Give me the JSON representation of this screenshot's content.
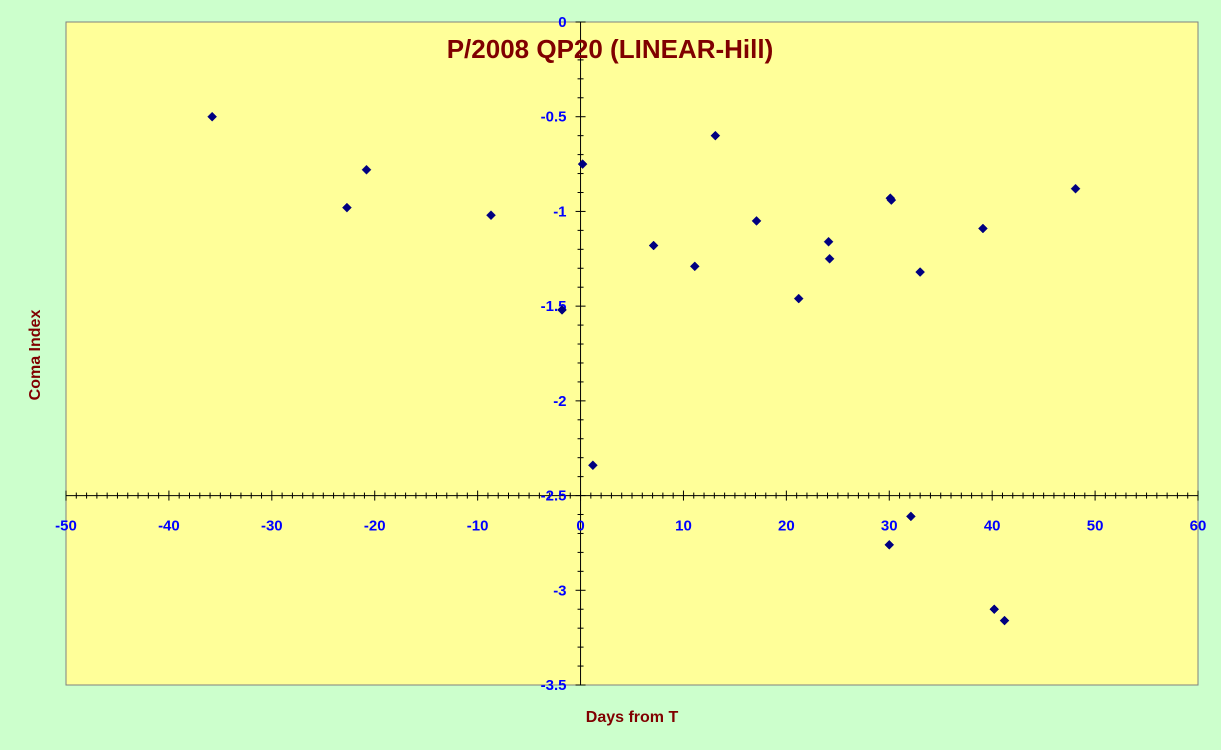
{
  "chart_data": {
    "type": "scatter",
    "title": "P/2008 QP20 (LINEAR-Hill)",
    "xlabel": "Days from T",
    "ylabel": "Coma Index",
    "xlim": [
      -50,
      60
    ],
    "ylim": [
      -3.5,
      0
    ],
    "x_ticks": [
      "-50",
      "-40",
      "-30",
      "-20",
      "-10",
      "0",
      "10",
      "20",
      "30",
      "40",
      "50",
      "60"
    ],
    "y_ticks": [
      "0",
      "-0.5",
      "-1",
      "-1.5",
      "-2",
      "-2.5",
      "-3",
      "-3.5"
    ],
    "grid": false,
    "legend": "none",
    "marker": "diamond",
    "colors": {
      "plot_area": "#ffff99",
      "outer_background": "#ccffcc",
      "marker": "#000080",
      "title": "#800000",
      "tick_labels": "#0000ff",
      "axis_lines": "#000000"
    },
    "points": [
      {
        "x": -35.8,
        "y": -0.5
      },
      {
        "x": -22.7,
        "y": -0.98
      },
      {
        "x": -20.8,
        "y": -0.78
      },
      {
        "x": -8.7,
        "y": -1.02
      },
      {
        "x": -1.8,
        "y": -1.52
      },
      {
        "x": 0.2,
        "y": -0.75
      },
      {
        "x": 1.2,
        "y": -2.34
      },
      {
        "x": 7.1,
        "y": -1.18
      },
      {
        "x": 11.1,
        "y": -1.29
      },
      {
        "x": 13.1,
        "y": -0.6
      },
      {
        "x": 17.1,
        "y": -1.05
      },
      {
        "x": 21.2,
        "y": -1.46
      },
      {
        "x": 24.1,
        "y": -1.16
      },
      {
        "x": 24.2,
        "y": -1.25
      },
      {
        "x": 30.1,
        "y": -0.93
      },
      {
        "x": 30.2,
        "y": -0.94
      },
      {
        "x": 30.0,
        "y": -2.76
      },
      {
        "x": 32.1,
        "y": -2.61
      },
      {
        "x": 33.0,
        "y": -1.32
      },
      {
        "x": 39.1,
        "y": -1.09
      },
      {
        "x": 40.2,
        "y": -3.1
      },
      {
        "x": 41.2,
        "y": -3.16
      },
      {
        "x": 48.1,
        "y": -0.88
      }
    ]
  }
}
